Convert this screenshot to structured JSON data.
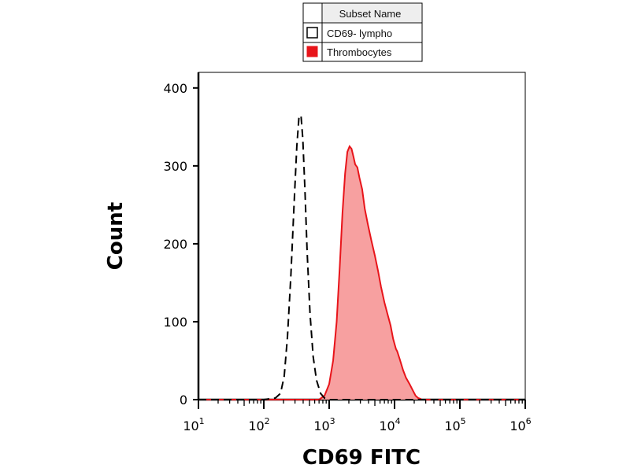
{
  "chart_data": {
    "type": "area",
    "title": "",
    "xlabel": "CD69 FITC",
    "ylabel": "Count",
    "xscale": "log",
    "xlim": [
      10,
      1000000
    ],
    "ylim": [
      0,
      420
    ],
    "yticks": [
      {
        "value": 0,
        "label": "0"
      },
      {
        "value": 100,
        "label": "100"
      },
      {
        "value": 200,
        "label": "200"
      },
      {
        "value": 300,
        "label": "300"
      },
      {
        "value": 400,
        "label": "400"
      }
    ],
    "xticks": [
      {
        "value": 10,
        "base": "10",
        "exp": "1"
      },
      {
        "value": 100,
        "base": "10",
        "exp": "2"
      },
      {
        "value": 1000,
        "base": "10",
        "exp": "3"
      },
      {
        "value": 10000,
        "base": "10",
        "exp": "4"
      },
      {
        "value": 100000,
        "base": "10",
        "exp": "5"
      },
      {
        "value": 1000000,
        "base": "10",
        "exp": "6"
      }
    ],
    "legend": {
      "header": "Subset Name",
      "position": "top-center",
      "entries": [
        {
          "label": "CD69- lympho",
          "style": "dashed-outline",
          "swatch_color": "#ffffff"
        },
        {
          "label": "Thrombocytes",
          "style": "filled",
          "swatch_color": "#e8141a"
        }
      ]
    },
    "series": [
      {
        "name": "CD69- lympho",
        "style": "dashed",
        "color": "#000000",
        "x": [
          10,
          100,
          150,
          180,
          205,
          230,
          260,
          290,
          320,
          345,
          370,
          395,
          425,
          460,
          510,
          570,
          640,
          740,
          850,
          1000,
          10000,
          1000000
        ],
        "y": [
          0,
          0,
          2,
          8,
          30,
          80,
          160,
          250,
          325,
          362,
          365,
          335,
          270,
          190,
          110,
          55,
          25,
          8,
          2,
          0,
          0,
          0
        ]
      },
      {
        "name": "Thrombocytes",
        "style": "filled",
        "color": "#e8141a",
        "fill": "#f7a0a0",
        "x": [
          10,
          700,
          850,
          1000,
          1150,
          1300,
          1450,
          1600,
          1750,
          1900,
          2050,
          2200,
          2350,
          2500,
          2700,
          2900,
          3200,
          3500,
          3900,
          4400,
          5000,
          5600,
          6200,
          7000,
          7800,
          8700,
          9500,
          10500,
          11000,
          12000,
          13500,
          15000,
          17000,
          19000,
          21000,
          23000,
          25000,
          26000,
          28000,
          100000,
          1000000
        ],
        "y": [
          0,
          0,
          5,
          20,
          50,
          100,
          170,
          240,
          290,
          318,
          325,
          322,
          312,
          302,
          298,
          285,
          270,
          245,
          225,
          205,
          185,
          165,
          145,
          125,
          110,
          95,
          78,
          65,
          62,
          52,
          38,
          28,
          20,
          12,
          5,
          2,
          1,
          0,
          0,
          0,
          0
        ]
      }
    ]
  }
}
